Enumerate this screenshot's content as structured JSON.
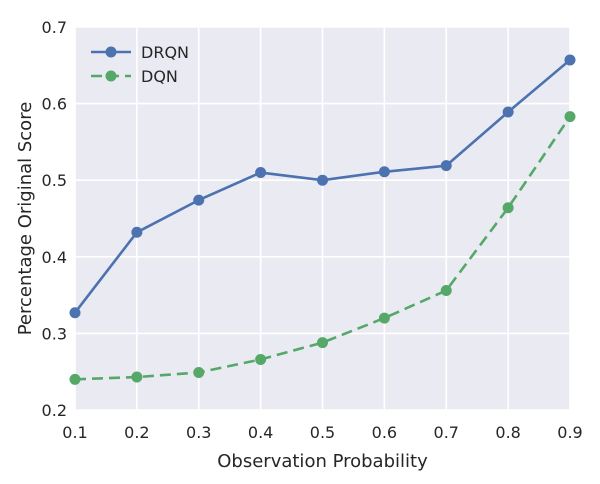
{
  "chart_data": {
    "type": "line",
    "title": "",
    "xlabel": "Observation Probability",
    "ylabel": "Percentage Original Score",
    "xlim": [
      0.1,
      0.9
    ],
    "ylim": [
      0.2,
      0.7
    ],
    "x_ticks": [
      "0.1",
      "0.2",
      "0.3",
      "0.4",
      "0.5",
      "0.6",
      "0.7",
      "0.8",
      "0.9"
    ],
    "y_ticks": [
      "0.2",
      "0.3",
      "0.4",
      "0.5",
      "0.6",
      "0.7"
    ],
    "grid": true,
    "legend_position": "top-left",
    "x": [
      0.1,
      0.2,
      0.3,
      0.4,
      0.5,
      0.6,
      0.7,
      0.8,
      0.9
    ],
    "series": [
      {
        "name": "DRQN",
        "color": "#4c72b0",
        "line_style": "solid",
        "values": [
          0.327,
          0.432,
          0.474,
          0.51,
          0.5,
          0.511,
          0.519,
          0.589,
          0.657
        ]
      },
      {
        "name": "DQN",
        "color": "#55a868",
        "line_style": "dashed",
        "values": [
          0.24,
          0.243,
          0.249,
          0.266,
          0.288,
          0.32,
          0.356,
          0.464,
          0.583
        ]
      }
    ]
  }
}
